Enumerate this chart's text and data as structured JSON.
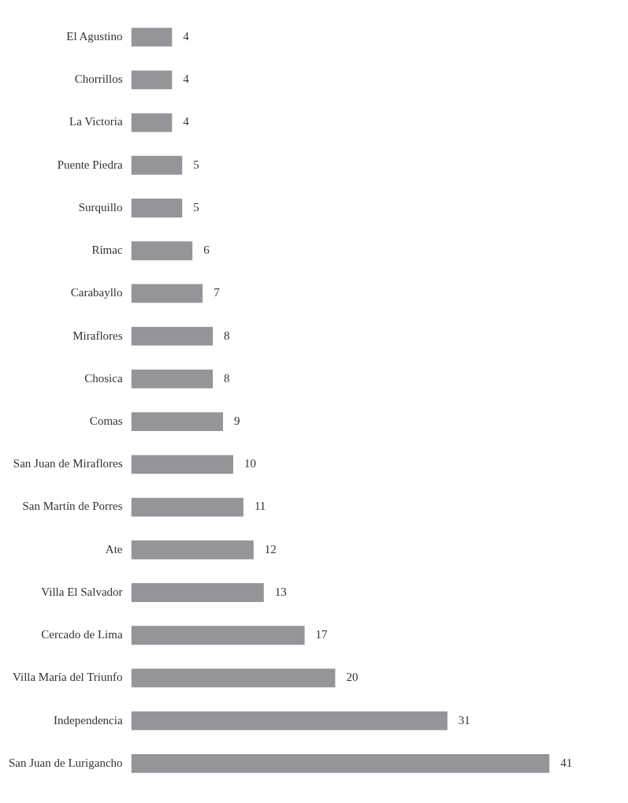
{
  "chart_data": {
    "type": "bar",
    "orientation": "horizontal",
    "categories": [
      "El Agustino",
      "Chorrillos",
      "La Victoria",
      "Puente Piedra",
      "Surquillo",
      "Rímac",
      "Carabayllo",
      "Miraflores",
      "Chosica",
      "Comas",
      "San Juan de Miraflores",
      "San Martín de Porres",
      "Ate",
      "Villa El Salvador",
      "Cercado de Lima",
      "Villa María del Triunfo",
      "Independencia",
      "San Juan de Lurigancho"
    ],
    "values": [
      4,
      4,
      4,
      5,
      5,
      6,
      7,
      8,
      8,
      9,
      10,
      11,
      12,
      13,
      17,
      20,
      31,
      41
    ],
    "color": "#939598",
    "data_labels": true,
    "tick_labels": "y"
  }
}
